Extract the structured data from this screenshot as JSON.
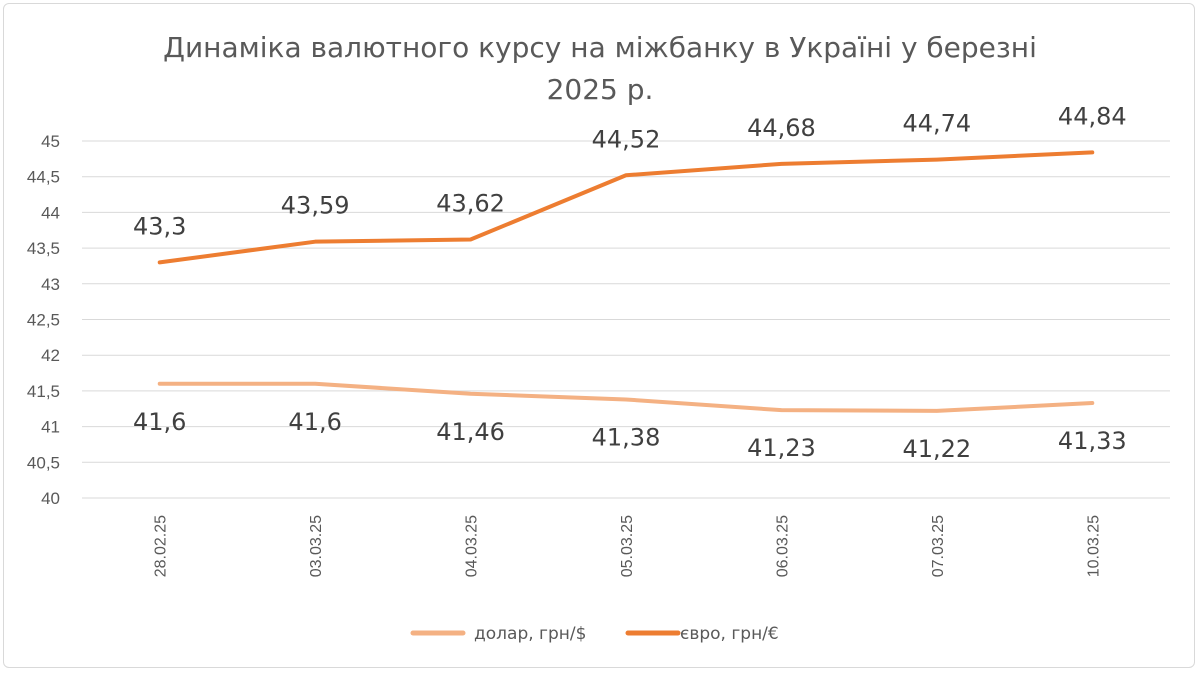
{
  "chart_data": {
    "type": "line",
    "title": [
      "Динаміка валютного курсу на міжбанку в Україні у березні",
      "2025 р."
    ],
    "categories": [
      "28.02.25",
      "03.03.25",
      "04.03.25",
      "05.03.25",
      "06.03.25",
      "07.03.25",
      "10.03.25"
    ],
    "series": [
      {
        "name": "долар, грн/$",
        "color": "#F4B183",
        "values": [
          41.6,
          41.6,
          41.46,
          41.38,
          41.23,
          41.22,
          41.33
        ],
        "labels": [
          "41,6",
          "41,6",
          "41,46",
          "41,38",
          "41,23",
          "41,22",
          "41,33"
        ],
        "label_position": "below"
      },
      {
        "name": "євро, грн/€",
        "color": "#ED7D31",
        "values": [
          43.3,
          43.59,
          43.62,
          44.52,
          44.68,
          44.74,
          44.84
        ],
        "labels": [
          "43,3",
          "43,59",
          "43,62",
          "44,52",
          "44,68",
          "44,74",
          "44,84"
        ],
        "label_position": "above"
      }
    ],
    "ylim": [
      40,
      45
    ],
    "yticks": [
      "40",
      "40,5",
      "41",
      "41,5",
      "42",
      "42,5",
      "43",
      "43,5",
      "44",
      "44,5",
      "45"
    ],
    "xlabel": "",
    "ylabel": "",
    "grid": true,
    "legend": "bottom"
  }
}
